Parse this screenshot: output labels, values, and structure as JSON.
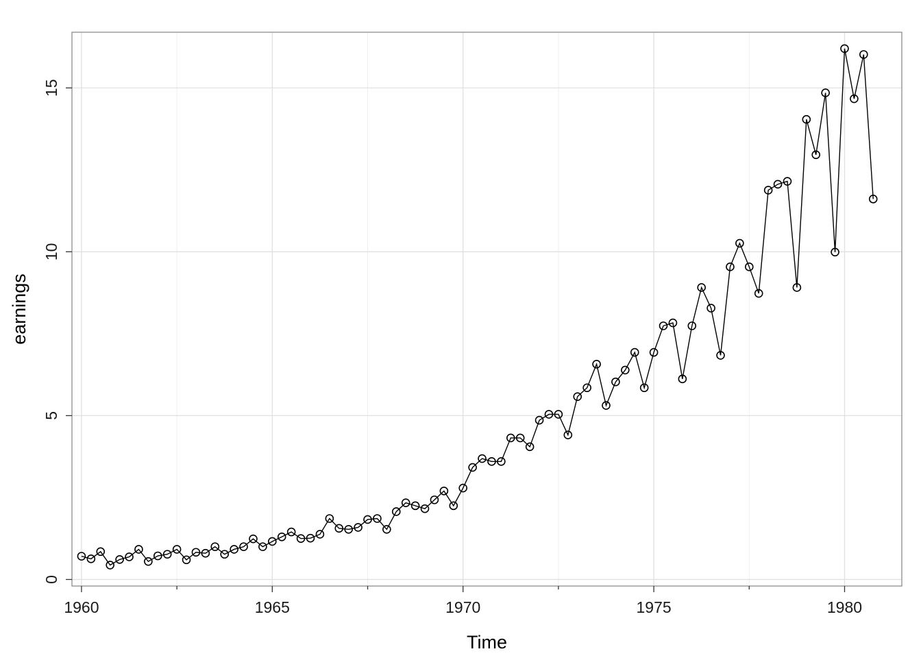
{
  "chart_data": {
    "type": "line",
    "title": "",
    "xlabel": "Time",
    "ylabel": "earnings",
    "xlim": [
      1959.75,
      1981.5
    ],
    "ylim": [
      -0.2,
      16.7
    ],
    "x_ticks": [
      1960,
      1965,
      1970,
      1975,
      1980
    ],
    "x_tick_labels": [
      "1960",
      "1965",
      "1970",
      "1975",
      "1980"
    ],
    "x_minor_ticks": [
      1962.5,
      1967.5,
      1972.5,
      1977.5
    ],
    "y_ticks": [
      0,
      5,
      10,
      15
    ],
    "y_tick_labels": [
      "0",
      "5",
      "10",
      "15"
    ],
    "grid": true,
    "markers": "open-circle",
    "series": [
      {
        "x_start": 1960,
        "x_step": 0.25,
        "values": [
          0.71,
          0.63,
          0.85,
          0.44,
          0.61,
          0.69,
          0.92,
          0.55,
          0.72,
          0.77,
          0.92,
          0.6,
          0.83,
          0.8,
          1.0,
          0.77,
          0.92,
          1.0,
          1.24,
          1.0,
          1.16,
          1.3,
          1.45,
          1.25,
          1.26,
          1.38,
          1.86,
          1.56,
          1.53,
          1.59,
          1.83,
          1.86,
          1.53,
          2.07,
          2.34,
          2.25,
          2.16,
          2.43,
          2.7,
          2.25,
          2.79,
          3.42,
          3.69,
          3.6,
          3.6,
          4.32,
          4.32,
          4.05,
          4.86,
          5.04,
          5.04,
          4.41,
          5.58,
          5.85,
          6.57,
          5.31,
          6.03,
          6.39,
          6.93,
          5.85,
          6.93,
          7.74,
          7.83,
          6.12,
          7.74,
          8.91,
          8.28,
          6.84,
          9.54,
          10.26,
          9.54,
          8.73,
          11.88,
          12.06,
          12.15,
          8.91,
          14.04,
          12.96,
          14.85,
          9.99,
          16.2,
          14.67,
          16.02,
          11.61
        ]
      }
    ]
  }
}
